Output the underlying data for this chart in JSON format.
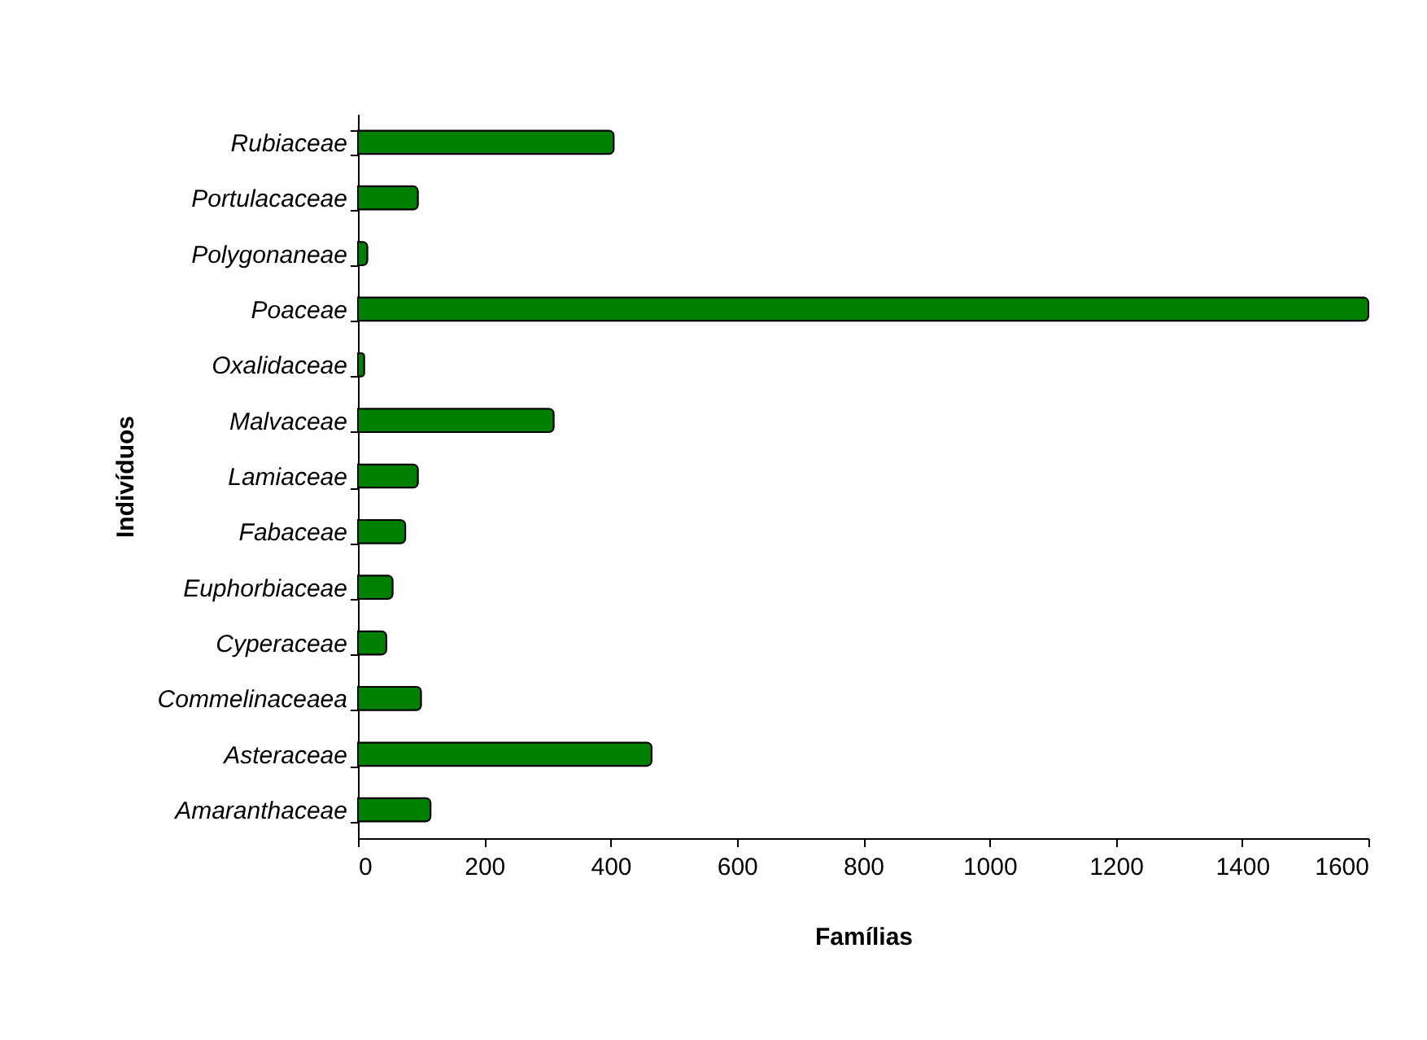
{
  "chart_data": {
    "type": "bar",
    "orientation": "horizontal",
    "xlabel": "Famílias",
    "ylabel": "Indivíduos",
    "categories": [
      "Rubiaceae",
      "Portulacaceae",
      "Polygonaneae",
      "Poaceae",
      "Oxalidaceae",
      "Malvaceae",
      "Lamiaceae",
      "Fabaceae",
      "Euphorbiaceae",
      "Cyperaceae",
      "Commelinaceaea",
      "Asteraceae",
      "Amaranthaceae"
    ],
    "values": [
      405,
      95,
      15,
      1600,
      10,
      310,
      95,
      75,
      55,
      45,
      100,
      465,
      115
    ],
    "color": "#008000",
    "xlim": [
      0,
      1600
    ],
    "xticks": [
      0,
      200,
      400,
      600,
      800,
      1000,
      1200,
      1400,
      1600
    ],
    "grid": false
  }
}
